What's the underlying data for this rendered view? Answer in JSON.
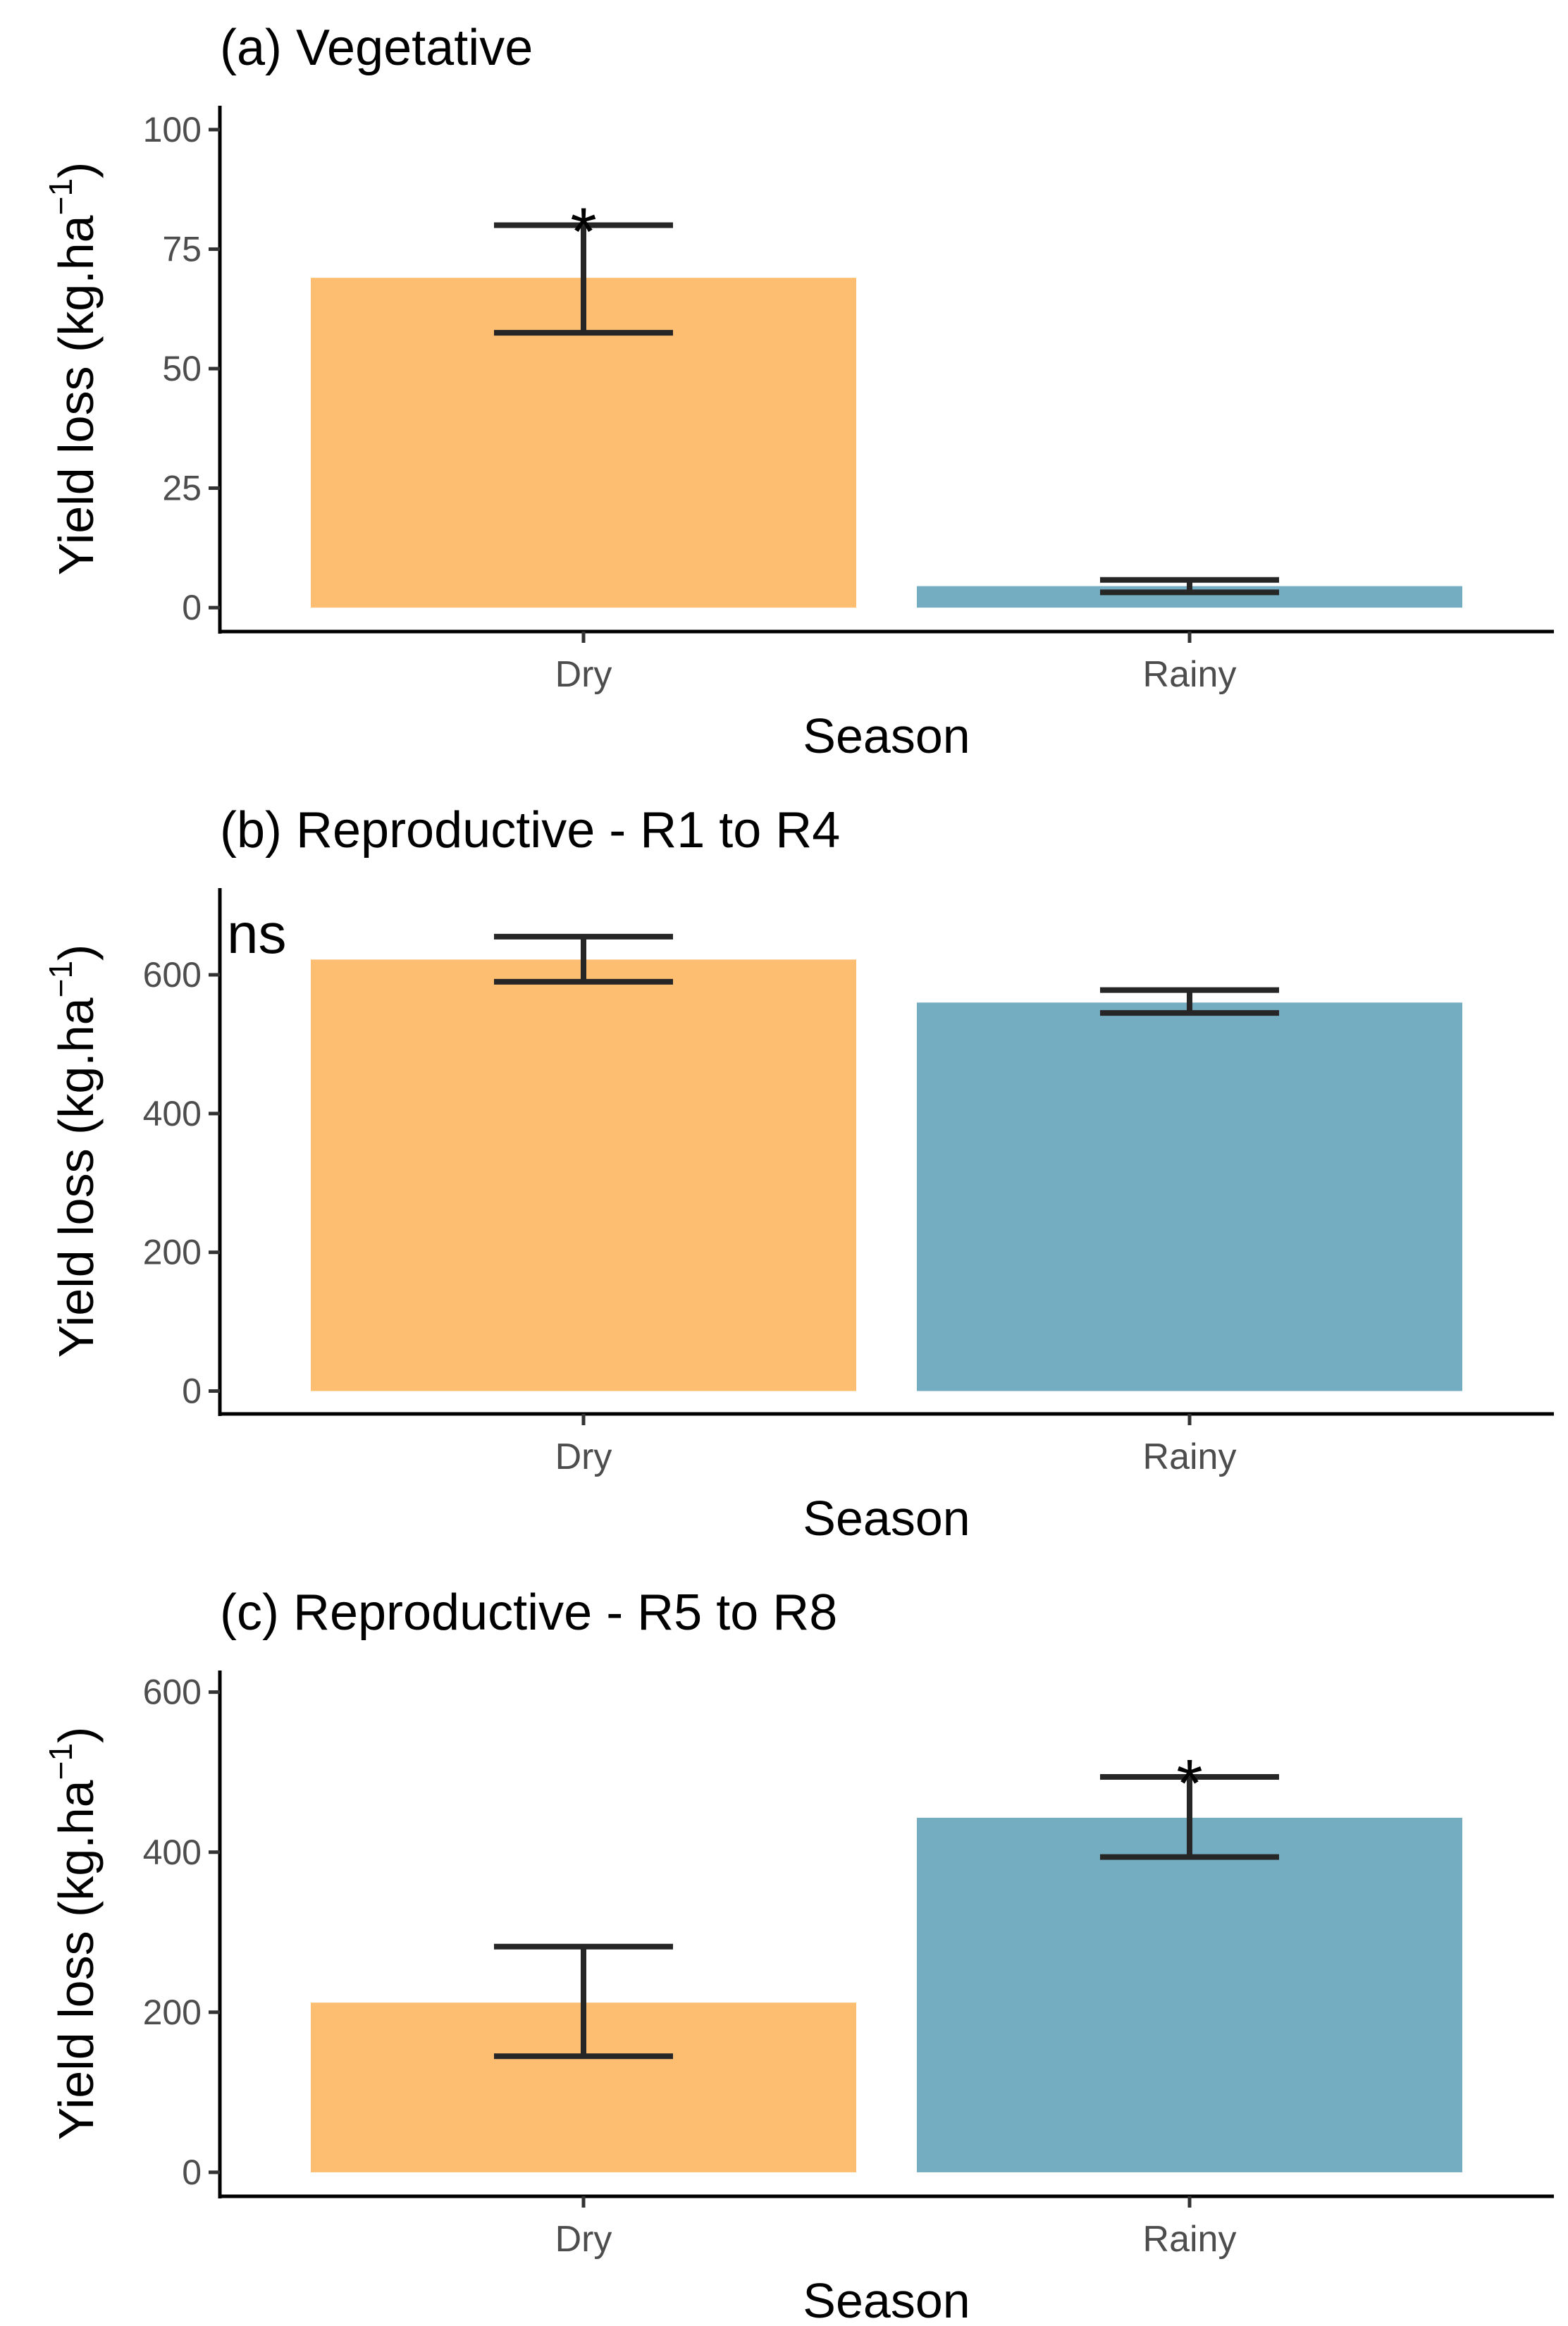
{
  "figure": {
    "panels_count": 3
  },
  "chart_data": [
    {
      "type": "bar",
      "title": "(a) Vegetative",
      "xlabel": "Season",
      "ylabel_main": "Yield loss (kg.ha",
      "ylabel_sup": "−1",
      "ylabel_close": ")",
      "categories": [
        "Dry",
        "Rainy"
      ],
      "values": [
        69,
        4.5
      ],
      "error_low": [
        57.5,
        3.2
      ],
      "error_high": [
        80,
        5.8
      ],
      "annotations": [
        {
          "category": "Dry",
          "text": "*"
        }
      ],
      "ylim": [
        -5,
        105
      ],
      "yticks": [
        0,
        25,
        50,
        75,
        100
      ],
      "colors": [
        "#FDBE71",
        "#74ACC1"
      ],
      "grid": false
    },
    {
      "type": "bar",
      "title": "(b) Reproductive - R1 to R4",
      "xlabel": "Season",
      "ylabel_main": "Yield loss (kg.ha",
      "ylabel_sup": "−1",
      "ylabel_close": ")",
      "categories": [
        "Dry",
        "Rainy"
      ],
      "values": [
        622,
        560
      ],
      "error_low": [
        590,
        545
      ],
      "error_high": [
        655,
        578
      ],
      "annotations": [
        {
          "position": "top-left",
          "text": "ns"
        }
      ],
      "ylim": [
        -33,
        725
      ],
      "yticks": [
        0,
        200,
        400,
        600
      ],
      "colors": [
        "#FDBE71",
        "#74ACC1"
      ],
      "grid": false
    },
    {
      "type": "bar",
      "title": "(c) Reproductive - R5 to R8",
      "xlabel": "Season",
      "ylabel_main": "Yield loss (kg.ha",
      "ylabel_sup": "−1",
      "ylabel_close": ")",
      "categories": [
        "Dry",
        "Rainy"
      ],
      "values": [
        212,
        443
      ],
      "error_low": [
        145,
        394
      ],
      "error_high": [
        282,
        494
      ],
      "annotations": [
        {
          "category": "Rainy",
          "text": "*"
        }
      ],
      "ylim": [
        -30,
        627
      ],
      "yticks": [
        0,
        200,
        400,
        600
      ],
      "colors": [
        "#FDBE71",
        "#74ACC1"
      ],
      "grid": false
    }
  ]
}
